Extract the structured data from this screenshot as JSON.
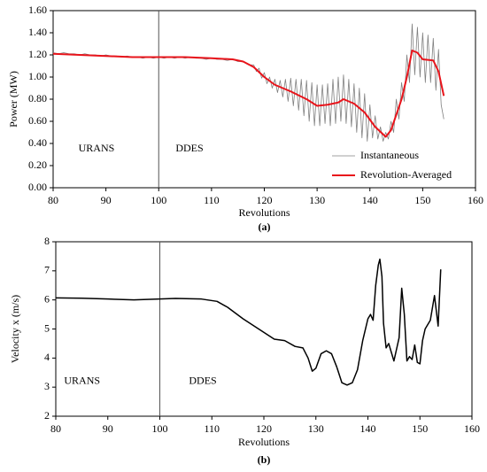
{
  "chart_data": [
    {
      "type": "line",
      "xlabel": "Revolutions",
      "ylabel": "Power (MW)",
      "caption": "(a)",
      "xlim": [
        80,
        160
      ],
      "xticks": [
        80,
        90,
        100,
        110,
        120,
        130,
        140,
        150,
        160
      ],
      "ylim": [
        0,
        1.6
      ],
      "yticks": [
        {
          "value": 0,
          "label": "0.00"
        },
        {
          "value": 0.2,
          "label": "0.20"
        },
        {
          "value": 0.4,
          "label": "0.40"
        },
        {
          "value": 0.6,
          "label": "0.60"
        },
        {
          "value": 0.8,
          "label": "0.80"
        },
        {
          "value": 1.0,
          "label": "1.00"
        },
        {
          "value": 1.2,
          "label": "1.20"
        },
        {
          "value": 1.4,
          "label": "1.40"
        },
        {
          "value": 1.6,
          "label": "1.60"
        }
      ],
      "vlines": [
        100
      ],
      "annotations": [
        "URANS",
        "DDES"
      ],
      "legend": "lower right",
      "series": [
        {
          "name": "Instantaneous",
          "color": "#808080",
          "width": 0.8,
          "x": [
            80,
            81,
            82,
            83,
            84,
            85,
            86,
            87,
            88,
            89,
            90,
            91,
            92,
            93,
            94,
            95,
            96,
            97,
            98,
            99,
            100,
            101,
            102,
            103,
            104,
            105,
            106,
            107,
            108,
            109,
            110,
            111,
            112,
            113,
            114,
            115,
            116,
            117,
            118,
            118.5,
            119,
            119.5,
            120,
            120.5,
            121,
            121.5,
            122,
            122.5,
            123,
            123.5,
            124,
            124.5,
            125,
            125.5,
            126,
            126.5,
            127,
            127.5,
            128,
            128.5,
            129,
            129.5,
            130,
            130.5,
            131,
            131.5,
            132,
            132.5,
            133,
            133.5,
            134,
            134.5,
            135,
            135.5,
            136,
            136.5,
            137,
            137.5,
            138,
            138.5,
            139,
            139.5,
            140,
            140.5,
            141,
            141.5,
            142,
            142.5,
            143,
            143.5,
            144,
            144.5,
            145,
            145.5,
            146,
            146.5,
            147,
            147.5,
            148,
            148.5,
            149,
            149.5,
            150,
            150.5,
            151,
            151.5,
            152,
            152.5,
            153,
            153.5,
            154
          ],
          "values": [
            1.22,
            1.21,
            1.22,
            1.21,
            1.21,
            1.2,
            1.21,
            1.2,
            1.2,
            1.19,
            1.2,
            1.19,
            1.19,
            1.18,
            1.19,
            1.18,
            1.18,
            1.17,
            1.18,
            1.17,
            1.18,
            1.17,
            1.18,
            1.17,
            1.18,
            1.17,
            1.18,
            1.17,
            1.17,
            1.16,
            1.17,
            1.16,
            1.16,
            1.15,
            1.16,
            1.14,
            1.14,
            1.11,
            1.11,
            1.05,
            1.08,
            0.99,
            1.04,
            0.94,
            1.0,
            0.9,
            0.98,
            0.86,
            0.97,
            0.82,
            0.98,
            0.78,
            0.99,
            0.74,
            0.98,
            0.7,
            0.98,
            0.65,
            0.97,
            0.6,
            0.95,
            0.56,
            0.93,
            0.56,
            0.93,
            0.58,
            0.94,
            0.56,
            0.98,
            0.58,
            1.0,
            0.6,
            1.02,
            0.58,
            0.98,
            0.55,
            0.94,
            0.5,
            0.9,
            0.45,
            0.85,
            0.42,
            0.75,
            0.45,
            0.65,
            0.44,
            0.55,
            0.42,
            0.5,
            0.44,
            0.6,
            0.5,
            0.8,
            0.62,
            0.95,
            0.78,
            1.2,
            0.95,
            1.48,
            1.02,
            1.45,
            1.0,
            1.4,
            0.95,
            1.38,
            0.95,
            1.35,
            0.88,
            1.25,
            0.75,
            0.62
          ]
        },
        {
          "name": "Revolution-Averaged",
          "color": "#e8141b",
          "width": 2,
          "x": [
            80,
            85,
            90,
            95,
            100,
            105,
            110,
            114,
            116,
            118,
            120,
            122,
            125,
            128,
            130,
            132,
            134,
            135,
            137,
            139,
            141,
            143,
            144,
            146,
            147,
            148,
            149,
            150,
            152,
            153,
            154
          ],
          "values": [
            1.21,
            1.2,
            1.19,
            1.18,
            1.18,
            1.18,
            1.17,
            1.16,
            1.14,
            1.09,
            1.0,
            0.93,
            0.87,
            0.8,
            0.74,
            0.75,
            0.77,
            0.8,
            0.76,
            0.68,
            0.55,
            0.46,
            0.52,
            0.8,
            1.0,
            1.24,
            1.22,
            1.16,
            1.15,
            1.05,
            0.83
          ]
        }
      ]
    },
    {
      "type": "line",
      "xlabel": "Revolutions",
      "ylabel": "Velocity x (m/s)",
      "caption": "(b)",
      "xlim": [
        80,
        160
      ],
      "xticks": [
        80,
        90,
        100,
        110,
        120,
        130,
        140,
        150,
        160
      ],
      "ylim": [
        2,
        8
      ],
      "yticks": [
        2,
        3,
        4,
        5,
        6,
        7,
        8
      ],
      "vlines": [
        100
      ],
      "annotations": [
        "URANS",
        "DDES"
      ],
      "series": [
        {
          "color": "#000000",
          "width": 1.5,
          "x": [
            80,
            85,
            90,
            95,
            100,
            103,
            108,
            111,
            113,
            116,
            119,
            122,
            124,
            126,
            127.5,
            128.5,
            129.3,
            130,
            131,
            132,
            133,
            134,
            135,
            136,
            137,
            138,
            139,
            140,
            140.5,
            141,
            141.5,
            142,
            142.3,
            142.7,
            143,
            143.5,
            144,
            145,
            146,
            146.5,
            147,
            147.5,
            148,
            148.5,
            149,
            149.5,
            150,
            150.5,
            151,
            152,
            152.8,
            153.5,
            154
          ],
          "values": [
            6.07,
            6.06,
            6.03,
            6.0,
            6.03,
            6.05,
            6.03,
            5.95,
            5.75,
            5.35,
            5.0,
            4.65,
            4.6,
            4.4,
            4.35,
            4.0,
            3.55,
            3.65,
            4.15,
            4.25,
            4.15,
            3.7,
            3.15,
            3.07,
            3.15,
            3.6,
            4.6,
            5.35,
            5.5,
            5.3,
            6.5,
            7.2,
            7.4,
            6.8,
            5.2,
            4.35,
            4.5,
            3.9,
            4.7,
            6.4,
            5.5,
            3.9,
            4.05,
            3.95,
            4.45,
            3.85,
            3.8,
            4.6,
            5.0,
            5.3,
            6.15,
            5.1,
            7.05
          ]
        }
      ]
    }
  ]
}
